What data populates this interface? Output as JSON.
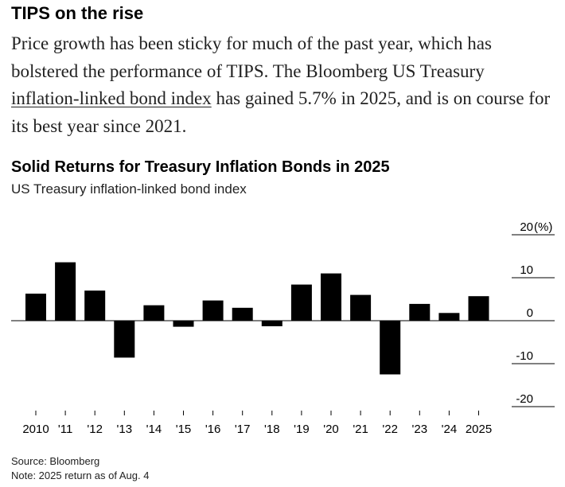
{
  "article": {
    "headline": "TIPS on the rise",
    "body_before_link": "Price growth has been sticky for much of the past year, which has bolstered the performance of TIPS. The Bloomberg US Treasury ",
    "body_link": "inflation-linked bond index",
    "body_after_link": " has gained 5.7% in 2025, and is on course for its best year since 2021."
  },
  "chart_data": {
    "type": "bar",
    "title": "Solid Returns for Treasury Inflation Bonds in 2025",
    "subtitle": "US Treasury inflation-linked bond index",
    "categories": [
      "2010",
      "'11",
      "'12",
      "'13",
      "'14",
      "'15",
      "'16",
      "'17",
      "'18",
      "'19",
      "'20",
      "'21",
      "'22",
      "'23",
      "'24",
      "2025"
    ],
    "values": [
      6.3,
      13.6,
      7.0,
      -8.6,
      3.6,
      -1.4,
      4.7,
      3.0,
      -1.3,
      8.4,
      11.0,
      6.0,
      -12.5,
      3.9,
      1.8,
      5.7
    ],
    "ylim": [
      -20,
      20
    ],
    "y_ticks": [
      20,
      10,
      0,
      -10,
      -20
    ],
    "y_unit": "(%)",
    "bar_color": "#000000",
    "axis_side": "right",
    "grid": false
  },
  "source": {
    "source_text": "Source: Bloomberg",
    "note_text": "Note: 2025 return as of Aug. 4"
  }
}
